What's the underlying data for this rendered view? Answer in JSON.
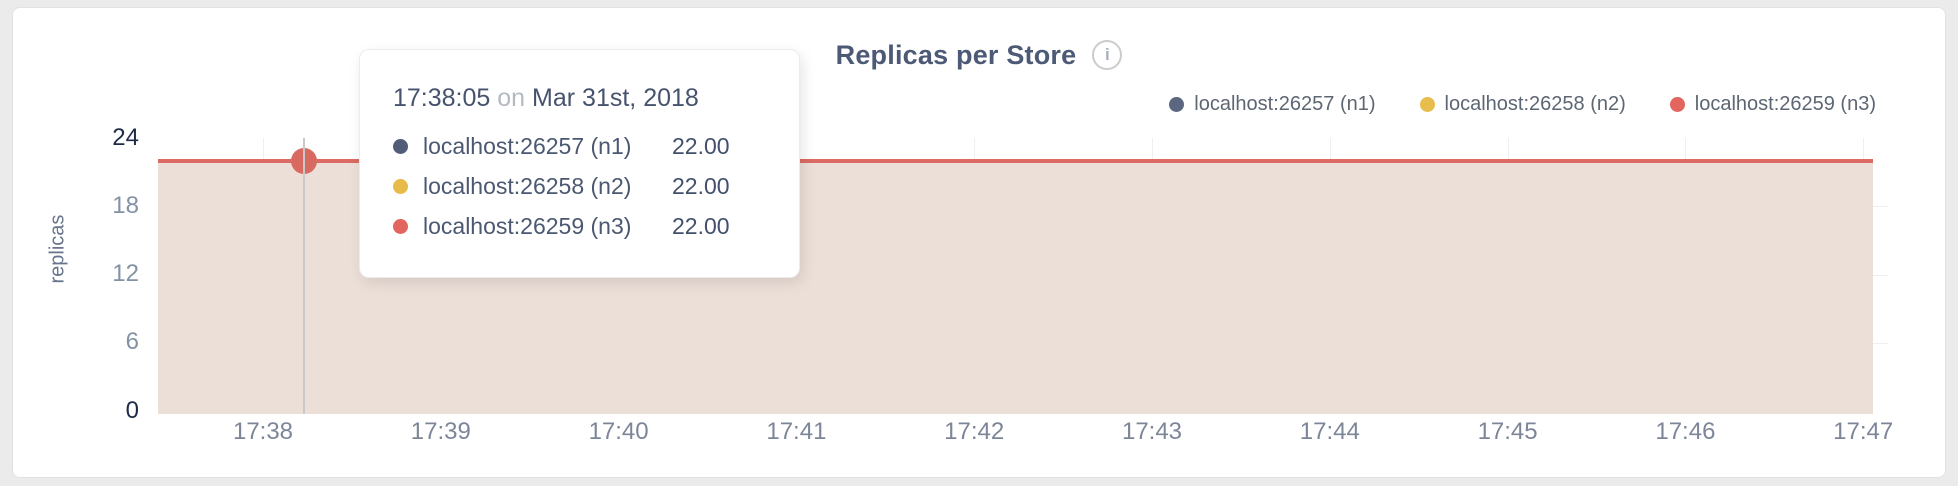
{
  "header": {
    "title": "Replicas per Store",
    "info_glyph": "i"
  },
  "legend": {
    "items": [
      {
        "label": "localhost:26257 (n1)",
        "color": "#5b6680"
      },
      {
        "label": "localhost:26258 (n2)",
        "color": "#e8bd4d"
      },
      {
        "label": "localhost:26259 (n3)",
        "color": "#e2655e"
      }
    ]
  },
  "tooltip": {
    "time": "17:38:05",
    "connector": "on",
    "date": "Mar 31st, 2018",
    "rows": [
      {
        "label": "localhost:26257 (n1)",
        "value": "22.00",
        "color": "#525e79"
      },
      {
        "label": "localhost:26258 (n2)",
        "value": "22.00",
        "color": "#e7bb49"
      },
      {
        "label": "localhost:26259 (n3)",
        "value": "22.00",
        "color": "#e2655e"
      }
    ]
  },
  "axes": {
    "ylabel": "replicas",
    "y_ticks": [
      "24",
      "18",
      "12",
      "6",
      "0"
    ],
    "x_ticks": [
      "17:38",
      "17:39",
      "17:40",
      "17:41",
      "17:42",
      "17:43",
      "17:44",
      "17:45",
      "17:46",
      "17:47"
    ]
  },
  "chart_data": {
    "type": "area",
    "title": "Replicas per Store",
    "xlabel": "",
    "ylabel": "replicas",
    "x": [
      "17:38",
      "17:39",
      "17:40",
      "17:41",
      "17:42",
      "17:43",
      "17:44",
      "17:45",
      "17:46",
      "17:47"
    ],
    "ylim": [
      0,
      24
    ],
    "y_tick_step": 6,
    "grid": true,
    "legend_position": "top-right",
    "series": [
      {
        "name": "localhost:26257 (n1)",
        "color": "#5b6680",
        "values": [
          22,
          22,
          22,
          22,
          22,
          22,
          22,
          22,
          22,
          22
        ]
      },
      {
        "name": "localhost:26258 (n2)",
        "color": "#e8bd4d",
        "values": [
          22,
          22,
          22,
          22,
          22,
          22,
          22,
          22,
          22,
          22
        ]
      },
      {
        "name": "localhost:26259 (n3)",
        "color": "#e2655e",
        "values": [
          22,
          22,
          22,
          22,
          22,
          22,
          22,
          22,
          22,
          22
        ]
      }
    ],
    "hover_point": {
      "time": "17:38:05",
      "date": "Mar 31st, 2018",
      "value": 22.0
    },
    "line_color": "#db6b63",
    "area_fill": "#ecdfd8",
    "hover_dot_color": "#d96a61"
  }
}
